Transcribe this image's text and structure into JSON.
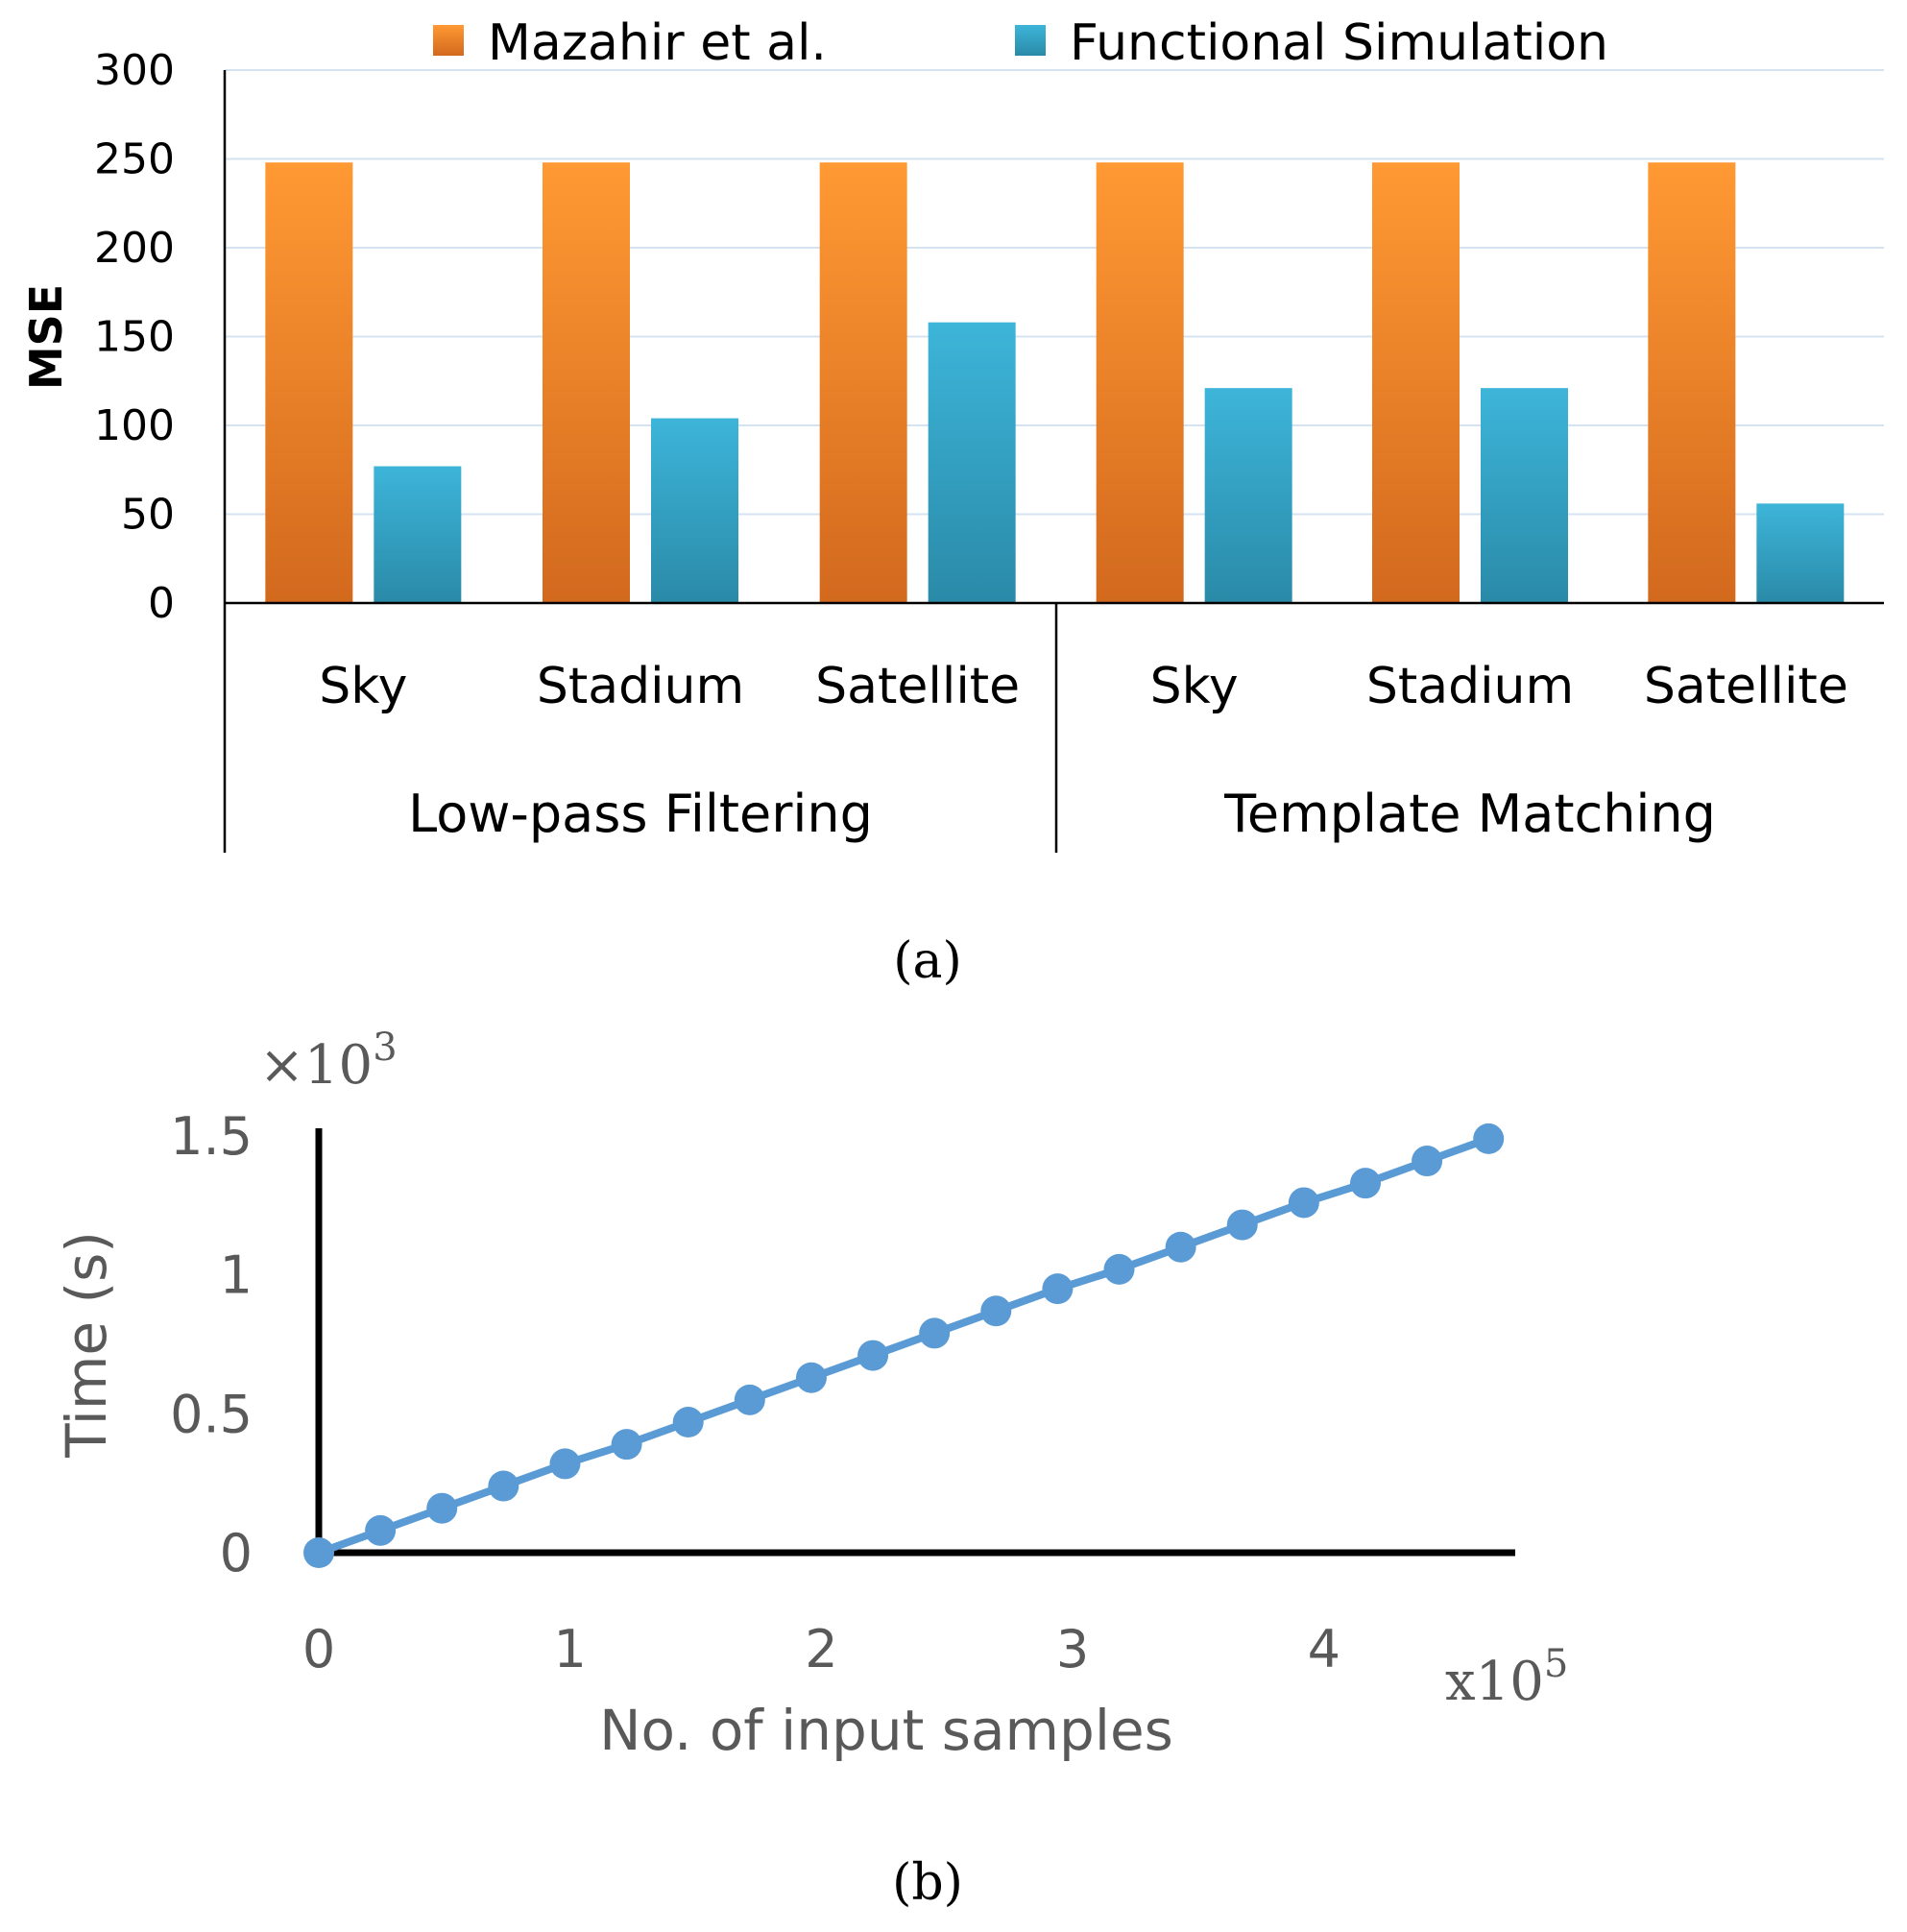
{
  "colors": {
    "orange_top": "#FF9933",
    "orange_bottom": "#D2691E",
    "blue_top": "#3DB5D9",
    "blue_bottom": "#2A8AA8",
    "grid": "#D5E3F0",
    "line": "#5B9BD5",
    "gray_text": "#595959",
    "axis": "#000000"
  },
  "chart_data": [
    {
      "type": "bar",
      "legend": [
        "Mazahir et al.",
        "Functional Simulation"
      ],
      "ylabel": "MSE",
      "ylim": [
        0,
        300
      ],
      "yticks": [
        "0",
        "50",
        "100",
        "150",
        "200",
        "250",
        "300"
      ],
      "groups": [
        {
          "label": "Low-pass Filtering",
          "categories": [
            "Sky",
            "Stadium",
            "Satellite"
          ]
        },
        {
          "label": "Template Matching",
          "categories": [
            "Sky",
            "Stadium",
            "Satellite"
          ]
        }
      ],
      "series": [
        {
          "name": "Mazahir et al.",
          "values": [
            248,
            248,
            248,
            248,
            248,
            248
          ]
        },
        {
          "name": "Functional Simulation",
          "values": [
            77,
            104,
            158,
            121,
            121,
            56
          ]
        }
      ],
      "caption": "(a)"
    },
    {
      "type": "line",
      "xlabel": "No. of input samples",
      "ylabel": "Time (s)",
      "x_multiplier": {
        "base": "x10",
        "exp": "5"
      },
      "y_multiplier": {
        "base": "×10",
        "exp": "3"
      },
      "xticks": [
        "0",
        "1",
        "2",
        "3",
        "4"
      ],
      "yticks": [
        "0",
        "0.5",
        "1",
        "1.5"
      ],
      "xlim": [
        0,
        4.7
      ],
      "ylim": [
        0,
        1.5
      ],
      "x": [
        0,
        0.245,
        0.49,
        0.735,
        0.98,
        1.225,
        1.47,
        1.715,
        1.96,
        2.205,
        2.45,
        2.695,
        2.94,
        3.185,
        3.43,
        3.675,
        3.92,
        4.165,
        4.41,
        4.655
      ],
      "y": [
        0,
        0.08,
        0.16,
        0.24,
        0.32,
        0.39,
        0.47,
        0.55,
        0.63,
        0.71,
        0.79,
        0.87,
        0.95,
        1.02,
        1.1,
        1.18,
        1.26,
        1.33,
        1.41,
        1.49
      ],
      "caption": "(b)"
    }
  ]
}
